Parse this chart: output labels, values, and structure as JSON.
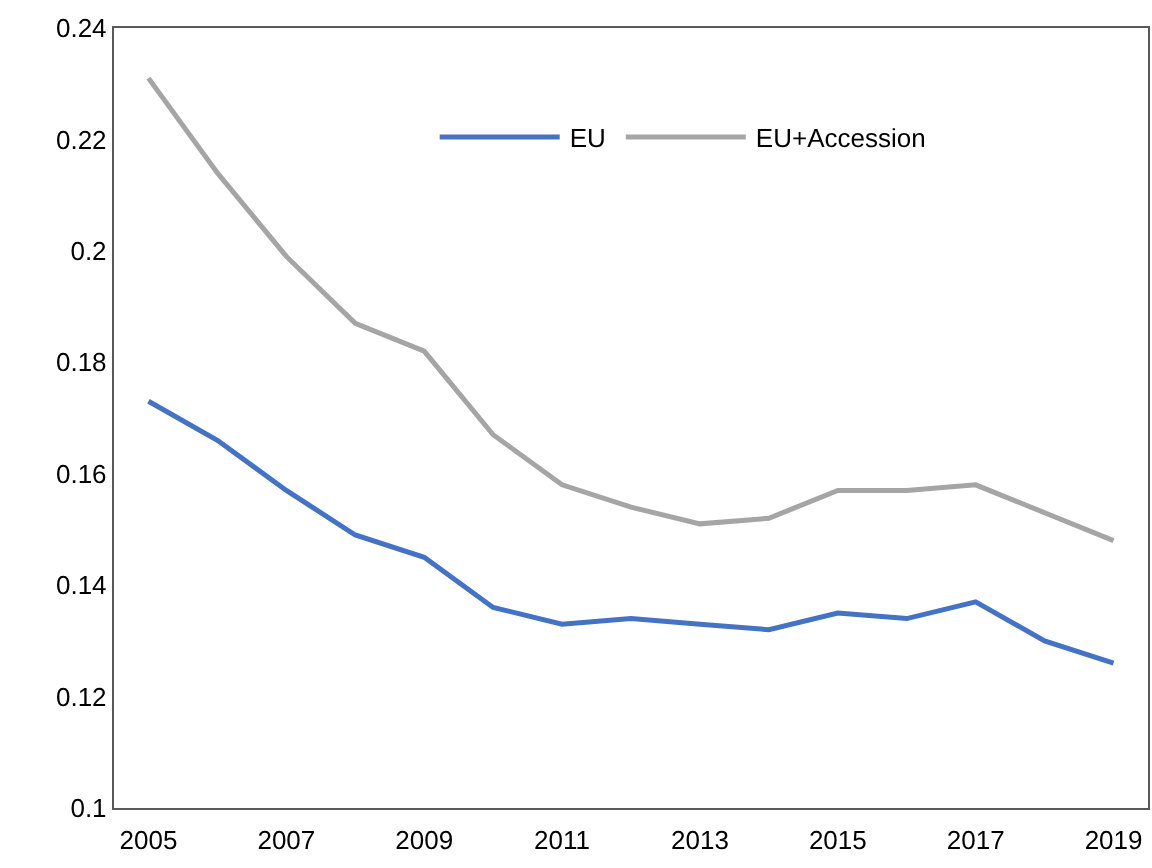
{
  "chart_data": {
    "type": "line",
    "x": [
      2005,
      2006,
      2007,
      2008,
      2009,
      2010,
      2011,
      2012,
      2013,
      2014,
      2015,
      2016,
      2017,
      2018,
      2019
    ],
    "series": [
      {
        "name": "EU",
        "color": "#4472c4",
        "values": [
          0.173,
          0.166,
          0.157,
          0.149,
          0.145,
          0.136,
          0.133,
          0.134,
          0.133,
          0.132,
          0.135,
          0.134,
          0.137,
          0.13,
          0.126
        ]
      },
      {
        "name": "EU+Accession",
        "color": "#a5a5a5",
        "values": [
          0.231,
          0.214,
          0.199,
          0.187,
          0.182,
          0.167,
          0.158,
          0.154,
          0.151,
          0.152,
          0.157,
          0.157,
          0.158,
          0.153,
          0.148
        ]
      }
    ],
    "xlim": [
      2004.5,
      2019.5
    ],
    "xticks": [
      2005,
      2007,
      2009,
      2011,
      2013,
      2015,
      2017,
      2019
    ],
    "ylim": [
      0.1,
      0.24
    ],
    "yticks": [
      0.1,
      0.12,
      0.14,
      0.16,
      0.18,
      0.2,
      0.22,
      0.24
    ],
    "grid": false,
    "legend": "top",
    "marker": "none",
    "line_style": "solid"
  }
}
